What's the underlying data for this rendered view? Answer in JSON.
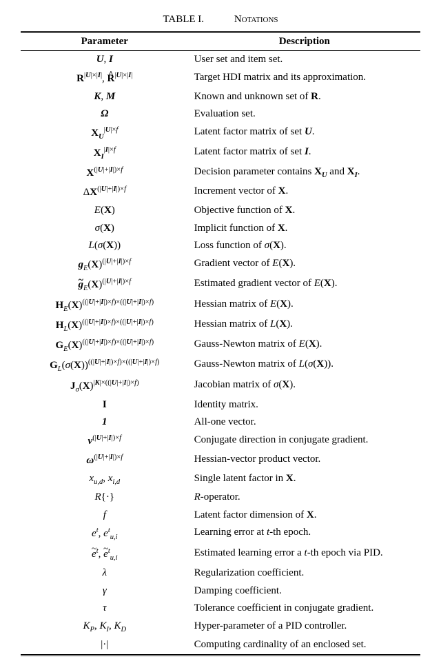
{
  "title_label": "TABLE I.",
  "title_text": "Notations",
  "columns": [
    "Parameter",
    "Description"
  ],
  "rows": [
    {
      "param": "<span class='bi'>U</span>, <span class='bi'>I</span>",
      "desc": "User set and item set."
    },
    {
      "param": "<span class='b'>R</span><span class='sup'>|<span class='bi'>U</span>|×|<span class='bi'>I</span>|</span>, <span class='hat-over b'>R</span><span class='sup'>|<span class='bi'>U</span>|×|<span class='bi'>I</span>|</span>",
      "desc": "Target HDI matrix and its approximation."
    },
    {
      "param": "<span class='bi'>K</span>, <span class='bi'>M</span>",
      "desc": "Known and unknown set of <span class='b'>R</span>."
    },
    {
      "param": "<span class='bi'>Ω</span>",
      "desc": "Evaluation set."
    },
    {
      "param": "<span class='b'>X</span><span class='bi sub'>U</span><span class='sup'>|<span class='bi'>U</span>|×<span class='i'>f</span></span>",
      "desc": "Latent factor matrix of set <span class='bi'>U</span>."
    },
    {
      "param": "<span class='b'>X</span><span class='bi sub'>I</span><span class='sup'>|<span class='bi'>I</span>|×<span class='i'>f</span></span>",
      "desc": "Latent factor matrix of set <span class='bi'>I</span>."
    },
    {
      "param": "<span class='b'>X</span><span class='sup'>(|<span class='bi'>U</span>|+|<span class='bi'>I</span>|)×<span class='i'>f</span></span>",
      "desc": "Decision parameter contains <span class='b'>X</span><span class='bi sub'>U</span> and <span class='b'>X</span><span class='bi sub'>I</span>."
    },
    {
      "param": "Δ<span class='b'>X</span><span class='sup'>(|<span class='bi'>U</span>|+|<span class='bi'>I</span>|)×<span class='i'>f</span></span>",
      "desc": "Increment vector of <span class='b'>X</span>."
    },
    {
      "param": "<span class='i'>E</span>(<span class='b'>X</span>)",
      "desc": "Objective function of <span class='b'>X</span>."
    },
    {
      "param": "<span class='i'>σ</span>(<span class='b'>X</span>)",
      "desc": "Implicit function of <span class='b'>X</span>."
    },
    {
      "param": "<span class='i'>L</span>(<span class='i'>σ</span>(<span class='b'>X</span>))",
      "desc": "Loss function of <span class='i'>σ</span>(<span class='b'>X</span>)."
    },
    {
      "param": "<span class='bi'>g</span><span class='i sub'>E</span>(<span class='b'>X</span>)<span class='sup'>(|<span class='bi'>U</span>|+|<span class='bi'>I</span>|)×<span class='i'>f</span></span>",
      "desc": "Gradient vector of <span class='i'>E</span>(<span class='b'>X</span>)."
    },
    {
      "param": "<span class='tilde-over bi'>g</span><span class='i sub'>E</span>(<span class='b'>X</span>)<span class='sup'>(|<span class='bi'>U</span>|+|<span class='bi'>I</span>|)×<span class='i'>f</span></span>",
      "desc": "Estimated gradient vector of <span class='i'>E</span>(<span class='b'>X</span>)."
    },
    {
      "param": "<span class='b'>H</span><span class='i sub'>E</span>(<span class='b'>X</span>)<span class='sup'>((|<span class='bi'>U</span>|+|<span class='bi'>I</span>|)×<span class='i'>f</span>)×((|<span class='bi'>U</span>|+|<span class='bi'>I</span>|)×<span class='i'>f</span>)</span>",
      "desc": "Hessian matrix of <span class='i'>E</span>(<span class='b'>X</span>)."
    },
    {
      "param": "<span class='b'>H</span><span class='i sub'>L</span>(<span class='b'>X</span>)<span class='sup'>((|<span class='bi'>U</span>|+|<span class='bi'>I</span>|)×<span class='i'>f</span>)×((|<span class='bi'>U</span>|+|<span class='bi'>I</span>|)×<span class='i'>f</span>)</span>",
      "desc": "Hessian matrix of <span class='i'>L</span>(<span class='b'>X</span>)."
    },
    {
      "param": "<span class='b'>G</span><span class='i sub'>E</span>(<span class='b'>X</span>)<span class='sup'>((|<span class='bi'>U</span>|+|<span class='bi'>I</span>|)×<span class='i'>f</span>)×((|<span class='bi'>U</span>|+|<span class='bi'>I</span>|)×<span class='i'>f</span>)</span>",
      "desc": "Gauss-Newton matrix of <span class='i'>E</span>(<span class='b'>X</span>)."
    },
    {
      "param": "<span class='b'>G</span><span class='i sub'>L</span>(<span class='i'>σ</span>(<span class='b'>X</span>))<span class='sup'>((|<span class='bi'>U</span>|+|<span class='bi'>I</span>|)×<span class='i'>f</span>)×((|<span class='bi'>U</span>|+|<span class='bi'>I</span>|)×<span class='i'>f</span>)</span>",
      "desc": "Gauss-Newton matrix of <span class='i'>L</span>(<span class='i'>σ</span>(<span class='b'>X</span>))."
    },
    {
      "param": "<span class='b'>J</span><span class='i sub'>σ</span>(<span class='b'>X</span>)<span class='sup'>|<span class='bi'>K</span>|×((|<span class='bi'>U</span>|+|<span class='bi'>I</span>|)×<span class='i'>f</span>)</span>",
      "desc": "Jacobian matrix of <span class='i'>σ</span>(<span class='b'>X</span>)."
    },
    {
      "param": "<span class='b'>I</span>",
      "desc": "Identity matrix."
    },
    {
      "param": "<span class='bi'>1</span>",
      "desc": "All-one vector."
    },
    {
      "param": "<span class='bi'>ν</span><span class='sup'>(|<span class='bi'>U</span>|+|<span class='bi'>I</span>|)×<span class='i'>f</span></span>",
      "desc": "Conjugate direction in conjugate gradient."
    },
    {
      "param": "<span class='bi'>ω</span><span class='sup'>(|<span class='bi'>U</span>|+|<span class='bi'>I</span>|)×<span class='i'>f</span></span>",
      "desc": "Hessian-vector product vector."
    },
    {
      "param": "<span class='i'>x<span class='sub'>u,d</span></span>, <span class='i'>x<span class='sub'>i,d</span></span>",
      "desc": "Single latent factor in <span class='b'>X</span>."
    },
    {
      "param": "<span class='i'>R</span>{·}",
      "desc": "<span class='i'>R</span>-operator."
    },
    {
      "param": "<span class='i'>f</span>",
      "desc": "Latent factor dimension of <span class='b'>X</span>."
    },
    {
      "param": "<span class='i'>e</span><span class='i sup'>t</span>, <span class='i'>e</span><span class='i sup'>t</span><span class='i sub'>u,i</span>",
      "desc": "Learning error at <span class='i'>t</span>-th epoch."
    },
    {
      "param": "<span class='tilde-over i'>e</span><span class='i sup'>t</span>, <span class='tilde-over i'>e</span><span class='i sup'>t</span><span class='i sub'>u,i</span>",
      "desc": "Estimated learning error a <span class='i'>t</span>-th epoch via PID."
    },
    {
      "param": "<span class='i'>λ</span>",
      "desc": "Regularization coefficient."
    },
    {
      "param": "<span class='i'>γ</span>",
      "desc": "Damping coefficient."
    },
    {
      "param": "<span class='i'>τ</span>",
      "desc": "Tolerance coefficient in conjugate gradient."
    },
    {
      "param": "<span class='i'>K<span class='sub'>P</span></span>, <span class='i'>K<span class='sub'>I</span></span>, <span class='i'>K<span class='sub'>D</span></span>",
      "desc": "Hyper-parameter of a PID controller."
    },
    {
      "param": "|·|",
      "desc": "Computing cardinality of an enclosed set."
    }
  ]
}
